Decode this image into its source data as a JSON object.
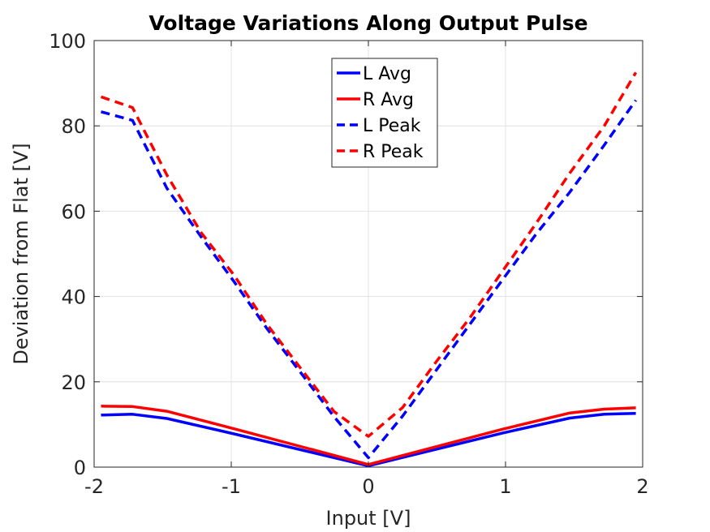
{
  "chart_data": {
    "type": "line",
    "title": "Voltage Variations Along Output Pulse",
    "xlabel": "Input [V]",
    "ylabel": "Deviation from Flat [V]",
    "xlim": [
      -2,
      2
    ],
    "ylim": [
      0,
      100
    ],
    "xticks": [
      -2,
      -1,
      0,
      1,
      2
    ],
    "xtick_labels": [
      "-2",
      "-1",
      "0",
      "1",
      "2"
    ],
    "yticks": [
      0,
      20,
      40,
      60,
      80,
      100
    ],
    "ytick_labels": [
      "0",
      "20",
      "40",
      "60",
      "80",
      "100"
    ],
    "grid": true,
    "legend_position": "top-center",
    "series": [
      {
        "name": "L Avg",
        "color": "#0000ff",
        "style": "solid",
        "x": [
          -1.95,
          -1.72,
          -1.47,
          -0.98,
          0.0,
          0.98,
          1.47,
          1.72,
          1.95
        ],
        "y": [
          12.2,
          12.4,
          11.4,
          7.8,
          0.3,
          8.0,
          11.5,
          12.4,
          12.6
        ]
      },
      {
        "name": "R Avg",
        "color": "#ff0000",
        "style": "solid",
        "x": [
          -1.95,
          -1.72,
          -1.47,
          -0.98,
          0.0,
          0.98,
          1.47,
          1.72,
          1.95
        ],
        "y": [
          14.3,
          14.2,
          13.1,
          9.0,
          0.6,
          8.9,
          12.7,
          13.6,
          13.9
        ]
      },
      {
        "name": "L Peak",
        "color": "#0000ff",
        "style": "dashed",
        "x": [
          -1.95,
          -1.72,
          -1.47,
          -1.22,
          -0.98,
          -0.74,
          -0.49,
          -0.25,
          0.0,
          0.25,
          0.49,
          0.74,
          0.98,
          1.22,
          1.47,
          1.72,
          1.95
        ],
        "y": [
          83.3,
          81.3,
          65.4,
          54.0,
          43.5,
          32.5,
          22.0,
          11.8,
          2.2,
          12.0,
          22.5,
          33.5,
          44.0,
          54.5,
          64.5,
          75.5,
          86.0
        ]
      },
      {
        "name": "R Peak",
        "color": "#ff0000",
        "style": "dashed",
        "x": [
          -1.95,
          -1.72,
          -1.47,
          -1.22,
          -0.98,
          -0.74,
          -0.49,
          -0.25,
          0.0,
          0.25,
          0.49,
          0.74,
          0.98,
          1.22,
          1.47,
          1.72,
          1.95
        ],
        "y": [
          86.8,
          84.3,
          68.5,
          55.0,
          45.0,
          33.5,
          23.0,
          13.0,
          7.2,
          14.0,
          24.5,
          35.0,
          46.0,
          57.0,
          69.0,
          80.0,
          92.5
        ]
      }
    ]
  }
}
